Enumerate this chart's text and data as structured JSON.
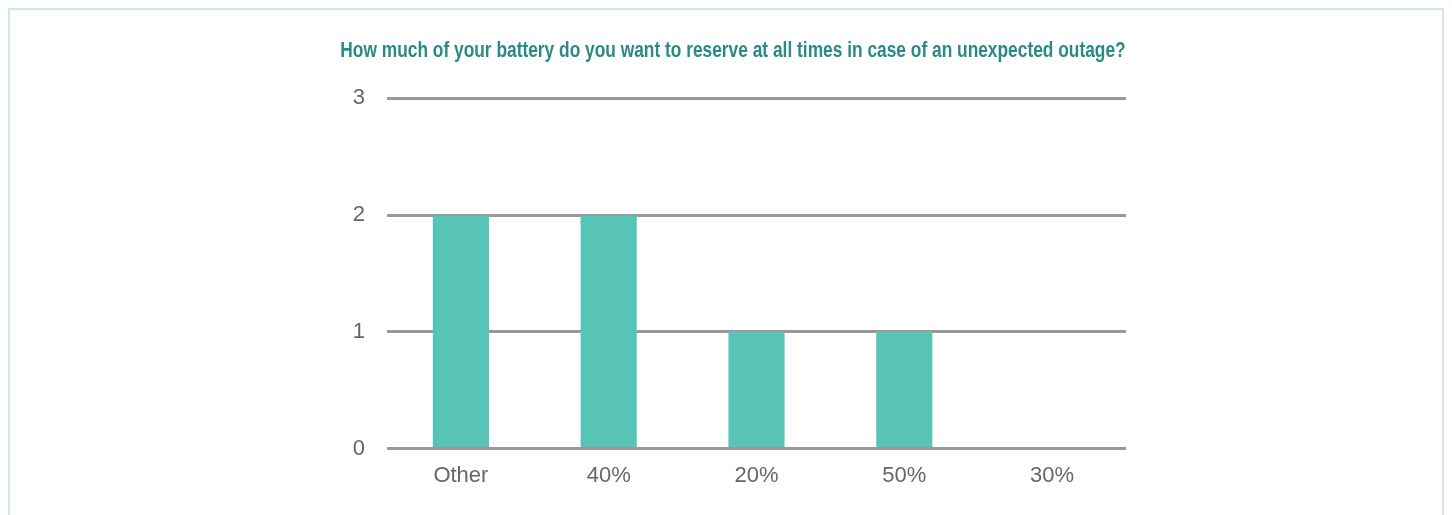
{
  "chart_data": {
    "type": "bar",
    "title": "How much of your battery do you want to reserve at all times in case of an unexpected outage?",
    "categories": [
      "Other",
      "40%",
      "20%",
      "50%",
      "30%"
    ],
    "values": [
      2,
      2,
      1,
      1,
      0
    ],
    "color": "#58c4b5",
    "ylim": [
      0,
      3
    ],
    "yticks": [
      0,
      1,
      2,
      3
    ],
    "grid": "y",
    "legend": false
  }
}
